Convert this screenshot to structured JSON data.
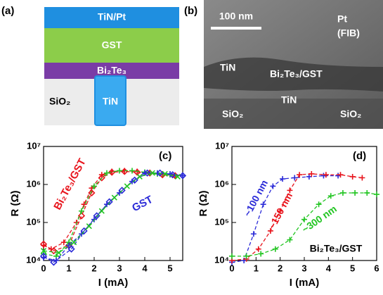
{
  "diagram": {
    "label": "(a)",
    "layers": [
      "TiN/Pt",
      "GST",
      "Bi₂Te₃",
      "SiO₂",
      "TiN"
    ]
  },
  "image": {
    "label": "(b)",
    "scale_bar": "100 nm",
    "labels": [
      "Pt",
      "(FIB)",
      "TiN",
      "Bi₂Te₃/GST",
      "TiN",
      "SiO₂",
      "SiO₂"
    ]
  },
  "chart_data": [
    {
      "type": "line",
      "label": "(c)",
      "xlabel": "I (mA)",
      "ylabel": "R (Ω)",
      "log_y": true,
      "xlim": [
        0,
        5.5
      ],
      "ylim": [
        10000,
        10000000
      ],
      "xticks": [
        0,
        1,
        2,
        3,
        4,
        5
      ],
      "yticks": [
        {
          "value": 10000,
          "label": "10⁴"
        },
        {
          "value": 100000,
          "label": "10⁵"
        },
        {
          "value": 1000000,
          "label": "10⁶"
        },
        {
          "value": 10000000,
          "label": "10⁷"
        }
      ],
      "annotations": [
        {
          "text": "Bi₂Te₃/GST",
          "color": "#e8141c"
        },
        {
          "text": "GST",
          "color": "#2b2bd8"
        }
      ],
      "series": [
        {
          "color": "#e8141c",
          "marker": "plus",
          "x": [
            0,
            0.3,
            0.8,
            1.3,
            1.6,
            1.9,
            2.3,
            2.7,
            3.2,
            3.7,
            4.2,
            4.7,
            5.2
          ],
          "values": [
            25000,
            20000,
            30000,
            100000,
            300000,
            800000,
            1800000,
            2200000,
            2300000,
            2200000,
            2000000,
            1900000,
            1700000
          ]
        },
        {
          "color": "#e8141c",
          "marker": "diamond",
          "x": [
            0,
            0.4,
            1,
            1.5,
            1.9,
            2.3,
            2.7,
            3.2,
            3.7,
            4.2,
            4.7,
            5.2
          ],
          "values": [
            27000,
            18000,
            25000,
            150000,
            600000,
            1500000,
            2100000,
            2200000,
            2100000,
            2000000,
            1800000,
            1700000
          ]
        },
        {
          "color": "#22c522",
          "marker": "plus",
          "x": [
            0,
            0.5,
            1,
            1.5,
            2,
            2.5,
            3,
            3.5,
            4,
            4.5,
            5
          ],
          "values": [
            15000,
            13000,
            30000,
            200000,
            900000,
            2000000,
            2300000,
            2300000,
            2100000,
            1900000,
            1800000
          ]
        },
        {
          "color": "#2b2bd8",
          "marker": "plus",
          "x": [
            0,
            0.5,
            1,
            1.5,
            2,
            2.5,
            3,
            3.5,
            4,
            4.5,
            5,
            5.5
          ],
          "values": [
            12000,
            10000,
            25000,
            50000,
            120000,
            300000,
            600000,
            1200000,
            2000000,
            2000000,
            1900000,
            1700000
          ]
        },
        {
          "color": "#2b2bd8",
          "marker": "diamond",
          "x": [
            0,
            0.4,
            1.1,
            1.6,
            2.1,
            2.6,
            3.1,
            3.6,
            4.1,
            4.6,
            5.1,
            5.5
          ],
          "values": [
            13000,
            9000,
            20000,
            60000,
            150000,
            350000,
            700000,
            1300000,
            2000000,
            2000000,
            1800000,
            1700000
          ]
        },
        {
          "color": "#22c522",
          "marker": "x",
          "x": [
            0,
            0.6,
            1.2,
            1.8,
            2.3,
            2.8,
            3.3,
            3.8,
            4.3,
            4.8,
            5.3
          ],
          "values": [
            18000,
            16000,
            30000,
            80000,
            200000,
            450000,
            900000,
            1600000,
            2000000,
            1900000,
            1600000
          ]
        }
      ]
    },
    {
      "type": "line",
      "label": "(d)",
      "xlabel": "I (mA)",
      "ylabel": "R (Ω)",
      "log_y": true,
      "xlim": [
        0,
        6
      ],
      "ylim": [
        10000,
        10000000
      ],
      "xticks": [
        0,
        1,
        2,
        3,
        4,
        5,
        6
      ],
      "yticks": [
        {
          "value": 10000,
          "label": "10⁴"
        },
        {
          "value": 100000,
          "label": "10⁵"
        },
        {
          "value": 1000000,
          "label": "10⁶"
        },
        {
          "value": 10000000,
          "label": "10⁷"
        }
      ],
      "annotations": [
        {
          "text": "~100 nm",
          "color": "#2b2bd8"
        },
        {
          "text": "~150 nm",
          "color": "#e8141c"
        },
        {
          "text": "~300 nm",
          "color": "#22c522"
        },
        {
          "text": "Bi₂Te₃/GST",
          "color": "#000000"
        }
      ],
      "series": [
        {
          "color": "#2b2bd8",
          "marker": "plus",
          "x": [
            0,
            0.5,
            0.9,
            1.3,
            1.7,
            2.1,
            2.6,
            3.2,
            3.8,
            4.4
          ],
          "values": [
            9000,
            10000,
            50000,
            300000,
            900000,
            1400000,
            1500000,
            1600000,
            1700000,
            1700000
          ]
        },
        {
          "color": "#e8141c",
          "marker": "plus",
          "x": [
            0,
            0.6,
            1.1,
            1.6,
            2,
            2.4,
            2.8,
            3.3,
            3.9,
            4.5,
            5,
            5.4
          ],
          "values": [
            10000,
            11000,
            20000,
            60000,
            200000,
            700000,
            1800000,
            1900000,
            1800000,
            1800000,
            1600000,
            1500000
          ]
        },
        {
          "color": "#22c522",
          "marker": "plus",
          "x": [
            0,
            0.6,
            1.2,
            1.8,
            2.4,
            3,
            3.6,
            4.1,
            4.6,
            5.1,
            5.6,
            6
          ],
          "values": [
            13000,
            13000,
            15000,
            20000,
            35000,
            120000,
            300000,
            500000,
            600000,
            600000,
            600000,
            550000
          ]
        }
      ]
    }
  ]
}
